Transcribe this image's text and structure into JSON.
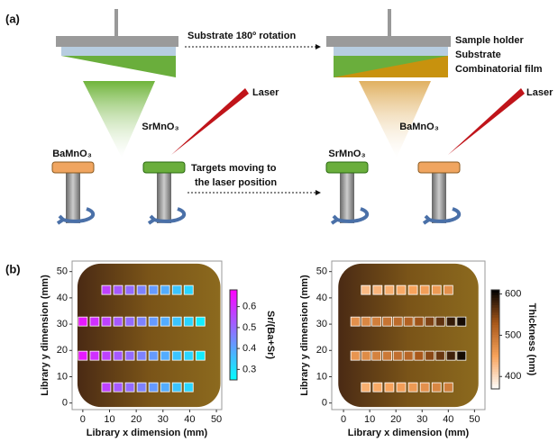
{
  "diagram": {
    "label": "(a)",
    "rotation_text": "Substrate 180º rotation",
    "sample_holder": "Sample holder",
    "substrate": "Substrate",
    "film": "Combinatorial film",
    "laser_left": "Laser",
    "laser_right": "Laser",
    "plume_left": "SrMnO₃",
    "plume_right": "BaMnO₃",
    "target_left": "BaMnO₃",
    "target_right": "SrMnO₃",
    "moving_line1": "Targets moving to",
    "moving_line2": "the laser position"
  },
  "panel_b": {
    "label": "(b)"
  },
  "chart_data": [
    {
      "type": "scatter",
      "xlabel": "Library x dimension (mm)",
      "ylabel": "Library y dimension (mm)",
      "colorbar_label": "Sr/(Ba+Sr)",
      "x": [
        8.8,
        13.2,
        17.6,
        22,
        26.4,
        30.8,
        35.2,
        39.6,
        0,
        4.4,
        8.8,
        13.2,
        17.6,
        22,
        26.4,
        30.8,
        35.2,
        39.6,
        44,
        0,
        4.4,
        8.8,
        13.2,
        17.6,
        22,
        26.4,
        30.8,
        35.2,
        39.6,
        44,
        8.8,
        13.2,
        17.6,
        22,
        26.4,
        30.8,
        35.2,
        39.6
      ],
      "y": [
        43,
        43,
        43,
        43,
        43,
        43,
        43,
        43,
        31,
        31,
        31,
        31,
        31,
        31,
        31,
        31,
        31,
        31,
        31,
        18,
        18,
        18,
        18,
        18,
        18,
        18,
        18,
        18,
        18,
        18,
        6,
        6,
        6,
        6,
        6,
        6,
        6,
        6
      ],
      "values": [
        0.57,
        0.53,
        0.5,
        0.46,
        0.42,
        0.39,
        0.35,
        0.32,
        0.64,
        0.6,
        0.57,
        0.53,
        0.5,
        0.46,
        0.42,
        0.39,
        0.35,
        0.32,
        0.28,
        0.64,
        0.6,
        0.57,
        0.53,
        0.5,
        0.46,
        0.42,
        0.39,
        0.35,
        0.32,
        0.28,
        0.57,
        0.53,
        0.5,
        0.46,
        0.42,
        0.39,
        0.35,
        0.32
      ],
      "colormap": [
        "#00ffff",
        "#ff00ff"
      ],
      "clim": [
        0.25,
        0.68
      ],
      "cticks": [
        0.3,
        0.4,
        0.5,
        0.6
      ],
      "xlim": [
        -4,
        52
      ],
      "ylim": [
        -2.5,
        54
      ],
      "xticks": [
        0,
        10,
        20,
        30,
        40,
        50
      ],
      "yticks": [
        0,
        10,
        20,
        30,
        40,
        50
      ]
    },
    {
      "type": "scatter",
      "xlabel": "Library x dimension (mm)",
      "ylabel": "Library y dimension (mm)",
      "colorbar_label": "Thickness (nm)",
      "x": [
        8.5,
        13,
        17.5,
        22,
        26.5,
        31,
        35.5,
        40,
        4.5,
        8.6,
        12.6,
        16.7,
        20.7,
        24.8,
        28.8,
        32.9,
        36.9,
        41,
        45,
        4.5,
        8.6,
        12.6,
        16.7,
        20.7,
        24.8,
        28.8,
        32.9,
        36.9,
        41,
        45,
        8.5,
        13,
        17.5,
        22,
        26.5,
        31,
        35.5,
        40
      ],
      "y": [
        43,
        43,
        43,
        43,
        43,
        43,
        43,
        43,
        31,
        31,
        31,
        31,
        31,
        31,
        31,
        31,
        31,
        31,
        31,
        18,
        18,
        18,
        18,
        18,
        18,
        18,
        18,
        18,
        18,
        18,
        6,
        6,
        6,
        6,
        6,
        6,
        6,
        6
      ],
      "values": [
        430,
        435,
        440,
        445,
        450,
        455,
        460,
        470,
        470,
        480,
        490,
        500,
        510,
        520,
        535,
        550,
        565,
        585,
        600,
        465,
        475,
        485,
        495,
        505,
        515,
        530,
        545,
        560,
        580,
        600,
        440,
        445,
        450,
        455,
        460,
        470,
        480,
        490
      ],
      "colormap": [
        "#ffffff",
        "#f7a35c",
        "#a8581a",
        "#000000"
      ],
      "clim": [
        370,
        610
      ],
      "cticks": [
        400,
        500,
        600
      ],
      "xlim": [
        -4.5,
        54
      ],
      "ylim": [
        -2.5,
        54
      ],
      "xticks": [
        0,
        10,
        20,
        30,
        40,
        50
      ],
      "yticks": [
        0,
        10,
        20,
        30,
        40,
        50
      ]
    }
  ]
}
